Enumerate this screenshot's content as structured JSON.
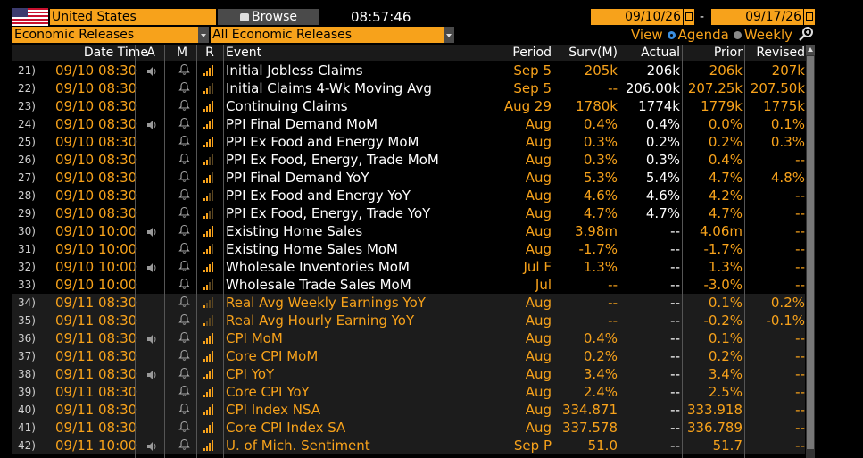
{
  "toolbar": {
    "country": "United States",
    "browse_label": "Browse",
    "time": "08:57:46",
    "date_from": "09/10/26",
    "date_sep": "-",
    "date_to": "09/17/26",
    "filter1": "Economic Releases",
    "filter2": "All Economic Releases",
    "view_label": "View",
    "view_opt1": "Agenda",
    "view_opt2": "Weekly",
    "view_selected": "Agenda"
  },
  "columns": {
    "datetime": "Date Time",
    "a": "A",
    "m": "M",
    "r": "R",
    "event": "Event",
    "period": "Period",
    "surv": "Surv(M)",
    "actual": "Actual",
    "prior": "Prior",
    "revised": "Revised"
  },
  "colors": {
    "accent": "#f7a21b",
    "white": "#ffffff",
    "header_bg": "#1a1a1a",
    "alt_row": "#1c1c1c"
  },
  "rows": [
    {
      "n": "21)",
      "dt": "09/10 08:30",
      "spk": true,
      "rel": 4,
      "ev": "Initial Jobless Claims",
      "evc": "white",
      "per": "Sep 5",
      "surv": "205k",
      "act": "206k",
      "pri": "206k",
      "rev": "207k"
    },
    {
      "n": "22)",
      "dt": "09/10 08:30",
      "spk": false,
      "rel": 2,
      "ev": "Initial Claims 4-Wk Moving Avg",
      "evc": "white",
      "per": "Sep 5",
      "surv": "--",
      "act": "206.00k",
      "pri": "207.25k",
      "rev": "207.50k"
    },
    {
      "n": "23)",
      "dt": "09/10 08:30",
      "spk": false,
      "rel": 4,
      "ev": "Continuing Claims",
      "evc": "white",
      "per": "Aug 29",
      "surv": "1780k",
      "act": "1774k",
      "pri": "1779k",
      "rev": "1775k"
    },
    {
      "n": "24)",
      "dt": "09/10 08:30",
      "spk": true,
      "rel": 4,
      "ev": "PPI Final Demand MoM",
      "evc": "white",
      "per": "Aug",
      "surv": "0.4%",
      "act": "0.4%",
      "pri": "0.0%",
      "rev": "0.1%"
    },
    {
      "n": "25)",
      "dt": "09/10 08:30",
      "spk": false,
      "rel": 4,
      "ev": "PPI Ex Food and Energy MoM",
      "evc": "white",
      "per": "Aug",
      "surv": "0.3%",
      "act": "0.2%",
      "pri": "0.2%",
      "rev": "0.3%"
    },
    {
      "n": "26)",
      "dt": "09/10 08:30",
      "spk": false,
      "rel": 2,
      "ev": "PPI Ex Food, Energy, Trade MoM",
      "evc": "white",
      "per": "Aug",
      "surv": "0.3%",
      "act": "0.3%",
      "pri": "0.4%",
      "rev": "--"
    },
    {
      "n": "27)",
      "dt": "09/10 08:30",
      "spk": false,
      "rel": 3,
      "ev": "PPI Final Demand YoY",
      "evc": "white",
      "per": "Aug",
      "surv": "5.3%",
      "act": "5.4%",
      "pri": "4.7%",
      "rev": "4.8%"
    },
    {
      "n": "28)",
      "dt": "09/10 08:30",
      "spk": false,
      "rel": 2,
      "ev": "PPI Ex Food and Energy YoY",
      "evc": "white",
      "per": "Aug",
      "surv": "4.6%",
      "act": "4.6%",
      "pri": "4.2%",
      "rev": "--"
    },
    {
      "n": "29)",
      "dt": "09/10 08:30",
      "spk": false,
      "rel": 2,
      "ev": "PPI Ex Food, Energy, Trade YoY",
      "evc": "white",
      "per": "Aug",
      "surv": "4.7%",
      "act": "4.7%",
      "pri": "4.7%",
      "rev": "--"
    },
    {
      "n": "30)",
      "dt": "09/10 10:00",
      "spk": true,
      "rel": 4,
      "ev": "Existing Home Sales",
      "evc": "white",
      "per": "Aug",
      "surv": "3.98m",
      "act": "--",
      "pri": "4.06m",
      "rev": "--"
    },
    {
      "n": "31)",
      "dt": "09/10 10:00",
      "spk": false,
      "rel": 3,
      "ev": "Existing Home Sales MoM",
      "evc": "white",
      "per": "Aug",
      "surv": "-1.7%",
      "act": "--",
      "pri": "-1.7%",
      "rev": "--"
    },
    {
      "n": "32)",
      "dt": "09/10 10:00",
      "spk": true,
      "rel": 4,
      "ev": "Wholesale Inventories MoM",
      "evc": "white",
      "per": "Jul F",
      "surv": "1.3%",
      "act": "--",
      "pri": "1.3%",
      "rev": "--"
    },
    {
      "n": "33)",
      "dt": "09/10 10:00",
      "spk": false,
      "rel": 2,
      "ev": "Wholesale Trade Sales MoM",
      "evc": "white",
      "per": "Jul",
      "surv": "--",
      "act": "--",
      "pri": "-3.0%",
      "rev": "--"
    },
    {
      "n": "34)",
      "dt": "09/11 08:30",
      "spk": false,
      "rel": 1,
      "ev": "Real Avg Weekly Earnings YoY",
      "evc": "orange",
      "per": "Aug",
      "surv": "--",
      "act": "--",
      "pri": "0.1%",
      "rev": "0.2%"
    },
    {
      "n": "35)",
      "dt": "09/11 08:30",
      "spk": false,
      "rel": 1,
      "ev": "Real Avg Hourly Earning YoY",
      "evc": "orange",
      "per": "Aug",
      "surv": "--",
      "act": "--",
      "pri": "-0.2%",
      "rev": "-0.1%"
    },
    {
      "n": "36)",
      "dt": "09/11 08:30",
      "spk": true,
      "rel": 4,
      "ev": "CPI MoM",
      "evc": "orange",
      "per": "Aug",
      "surv": "0.4%",
      "act": "--",
      "pri": "0.1%",
      "rev": "--"
    },
    {
      "n": "37)",
      "dt": "09/11 08:30",
      "spk": false,
      "rel": 4,
      "ev": "Core CPI MoM",
      "evc": "orange",
      "per": "Aug",
      "surv": "0.2%",
      "act": "--",
      "pri": "0.2%",
      "rev": "--"
    },
    {
      "n": "38)",
      "dt": "09/11 08:30",
      "spk": true,
      "rel": 4,
      "ev": "CPI YoY",
      "evc": "orange",
      "per": "Aug",
      "surv": "3.4%",
      "act": "--",
      "pri": "3.4%",
      "rev": "--"
    },
    {
      "n": "39)",
      "dt": "09/11 08:30",
      "spk": false,
      "rel": 4,
      "ev": "Core CPI YoY",
      "evc": "orange",
      "per": "Aug",
      "surv": "2.4%",
      "act": "--",
      "pri": "2.5%",
      "rev": "--"
    },
    {
      "n": "40)",
      "dt": "09/11 08:30",
      "spk": false,
      "rel": 4,
      "ev": "CPI Index NSA",
      "evc": "orange",
      "per": "Aug",
      "surv": "334.871",
      "act": "--",
      "pri": "333.918",
      "rev": "--"
    },
    {
      "n": "41)",
      "dt": "09/11 08:30",
      "spk": false,
      "rel": 4,
      "ev": "Core CPI Index SA",
      "evc": "orange",
      "per": "Aug",
      "surv": "337.578",
      "act": "--",
      "pri": "336.789",
      "rev": "--"
    },
    {
      "n": "42)",
      "dt": "09/11 10:00",
      "spk": true,
      "rel": 4,
      "ev": "U. of Mich. Sentiment",
      "evc": "orange",
      "per": "Sep P",
      "surv": "51.0",
      "act": "--",
      "pri": "51.7",
      "rev": "--"
    }
  ]
}
